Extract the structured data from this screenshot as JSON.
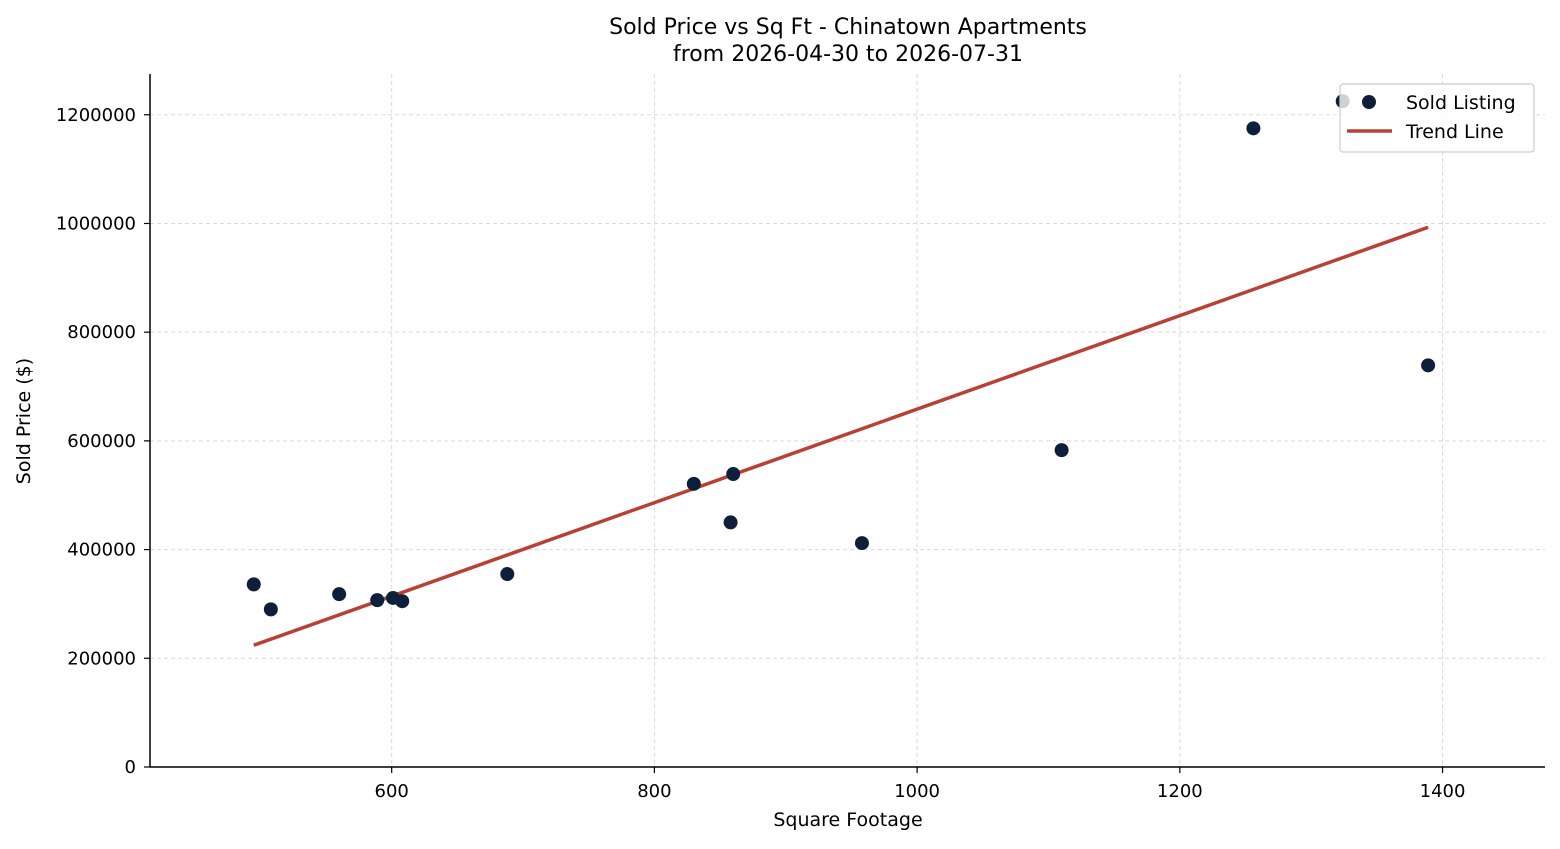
{
  "chart_data": {
    "type": "scatter",
    "title": "Sold Price vs Sq Ft - Chinatown Apartments",
    "subtitle": "from 2026-04-30 to 2026-07-31",
    "xlabel": "Square Footage",
    "ylabel": "Sold Price ($)",
    "xlim": [
      416,
      1478
    ],
    "ylim": [
      0,
      1275000
    ],
    "x_ticks": [
      600,
      800,
      1000,
      1200,
      1400
    ],
    "y_ticks": [
      0,
      200000,
      400000,
      600000,
      800000,
      1000000,
      1200000
    ],
    "x_tick_labels": [
      "600",
      "800",
      "1000",
      "1200",
      "1400"
    ],
    "y_tick_labels": [
      "0",
      "200000",
      "400000",
      "600000",
      "800000",
      "1000000",
      "1200000"
    ],
    "grid": true,
    "legend": {
      "position": "top-right",
      "entries": [
        "Sold Listing",
        "Trend Line"
      ]
    },
    "series": [
      {
        "name": "Sold Listing",
        "kind": "scatter",
        "color": "#0d1f3a",
        "points": [
          {
            "x": 495,
            "y": 336000
          },
          {
            "x": 508,
            "y": 290000
          },
          {
            "x": 560,
            "y": 318000
          },
          {
            "x": 589,
            "y": 307000
          },
          {
            "x": 601,
            "y": 311000
          },
          {
            "x": 608,
            "y": 305000
          },
          {
            "x": 688,
            "y": 355000
          },
          {
            "x": 830,
            "y": 521000
          },
          {
            "x": 858,
            "y": 450000
          },
          {
            "x": 860,
            "y": 539000
          },
          {
            "x": 958,
            "y": 412000
          },
          {
            "x": 1110,
            "y": 583000
          },
          {
            "x": 1256,
            "y": 1175000
          },
          {
            "x": 1324,
            "y": 1225000
          },
          {
            "x": 1389,
            "y": 739000
          }
        ]
      },
      {
        "name": "Trend Line",
        "kind": "line",
        "color": "#b94032",
        "points": [
          {
            "x": 495,
            "y": 224000
          },
          {
            "x": 1389,
            "y": 993000
          }
        ]
      }
    ]
  }
}
